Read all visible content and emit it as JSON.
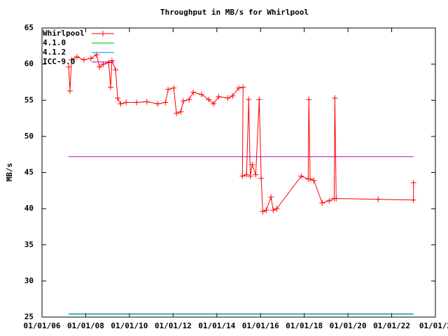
{
  "chart_data": {
    "type": "line",
    "title": "Throughput in MB/s for Whirlpool",
    "y_label": "MB/s",
    "xlim": [
      2006,
      2024
    ],
    "xticks": [
      {
        "value": 2006,
        "label": "01/01/06"
      },
      {
        "value": 2008,
        "label": "01/01/08"
      },
      {
        "value": 2010,
        "label": "01/01/10"
      },
      {
        "value": 2012,
        "label": "01/01/12"
      },
      {
        "value": 2014,
        "label": "01/01/14"
      },
      {
        "value": 2016,
        "label": "01/01/16"
      },
      {
        "value": 2018,
        "label": "01/01/18"
      },
      {
        "value": 2020,
        "label": "01/01/20"
      },
      {
        "value": 2022,
        "label": "01/01/22"
      },
      {
        "value": 2024,
        "label": "01/01/2"
      }
    ],
    "ylim": [
      25,
      65
    ],
    "yticks": [
      25,
      30,
      35,
      40,
      45,
      50,
      55,
      60,
      65
    ],
    "legend": "top-left",
    "series": [
      {
        "name": "Whirlpool",
        "color": "#ff0000",
        "markers": true,
        "x": [
          2007.22,
          2007.28,
          2007.35,
          2007.6,
          2007.92,
          2008.24,
          2008.5,
          2008.63,
          2008.8,
          2009.05,
          2009.14,
          2009.2,
          2009.37,
          2009.46,
          2009.6,
          2009.85,
          2010.33,
          2010.8,
          2011.3,
          2011.65,
          2011.77,
          2012.03,
          2012.15,
          2012.35,
          2012.47,
          2012.73,
          2012.92,
          2013.3,
          2013.63,
          2013.85,
          2014.08,
          2014.5,
          2014.72,
          2015.0,
          2015.2,
          2015.17,
          2015.36,
          2015.46,
          2015.53,
          2015.62,
          2015.78,
          2015.94,
          2016.03,
          2016.1,
          2016.26,
          2016.48,
          2016.58,
          2016.74,
          2017.86,
          2018.18,
          2018.21,
          2018.27,
          2018.44,
          2018.82,
          2019.14,
          2019.37,
          2019.4,
          2019.46,
          2021.38,
          2022.99,
          2023.0
        ],
        "values": [
          59.6,
          56.3,
          60.6,
          61,
          60.6,
          60.8,
          61.3,
          59.6,
          60,
          60.2,
          56.8,
          60.5,
          59.2,
          55.3,
          54.5,
          54.7,
          54.7,
          54.8,
          54.5,
          54.7,
          56.5,
          56.7,
          53.2,
          53.4,
          54.9,
          55.1,
          56.1,
          55.8,
          55.1,
          54.5,
          55.5,
          55.3,
          55.6,
          56.7,
          56.8,
          44.5,
          44.7,
          55.1,
          44.5,
          46.1,
          44.7,
          55.1,
          44.2,
          39.6,
          39.8,
          41.6,
          39.8,
          40,
          44.5,
          44.1,
          55.1,
          44.1,
          43.9,
          40.8,
          41.1,
          41.4,
          55.3,
          41.4,
          41.3,
          41.2,
          43.6
        ]
      },
      {
        "name": "4.1.0",
        "color": "#00c000",
        "x": [
          2007.22,
          2023.0
        ],
        "values": [
          25.4,
          25.4
        ]
      },
      {
        "name": "4.1.2",
        "color": "#0080ff",
        "x": [
          2007.22,
          2023.0
        ],
        "values": [
          25.45,
          25.45
        ]
      },
      {
        "name": "ICC-9.0",
        "color": "#c000c0",
        "x": [
          2007.22,
          2023.0
        ],
        "values": [
          47.2,
          47.2
        ]
      }
    ]
  }
}
